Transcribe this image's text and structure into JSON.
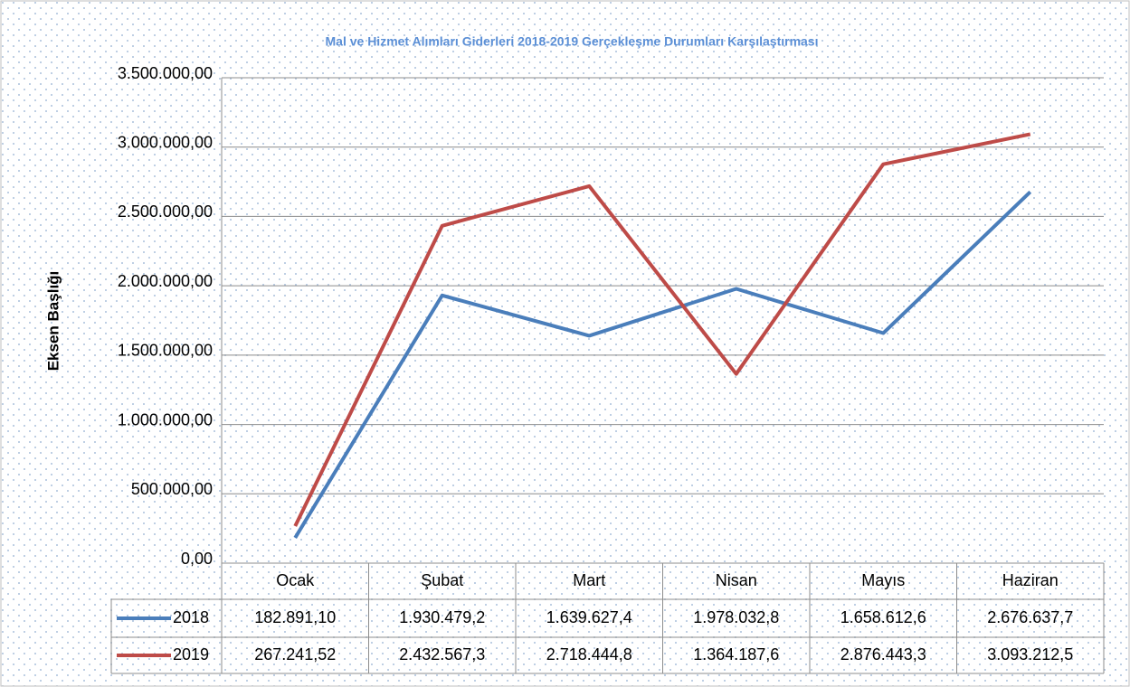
{
  "chart_data": {
    "type": "line",
    "title": "Mal ve Hizmet Alımları Giderleri 2018-2019 Gerçekleşme Durumları Karşılaştırması",
    "y_axis_label": "Eksen Başlığı",
    "categories": [
      "Ocak",
      "Şubat",
      "Mart",
      "Nisan",
      "Mayıs",
      "Haziran"
    ],
    "series": [
      {
        "name": "2018",
        "color": "#4a7ebb",
        "values": [
          182891.1,
          1930479.2,
          1639627.4,
          1978032.8,
          1658612.6,
          2676637.7
        ],
        "value_labels": [
          "182.891,10",
          "1.930.479,2",
          "1.639.627,4",
          "1.978.032,8",
          "1.658.612,6",
          "2.676.637,7"
        ]
      },
      {
        "name": "2019",
        "color": "#be4b48",
        "values": [
          267241.52,
          2432567.3,
          2718444.8,
          1364187.6,
          2876443.3,
          3093212.5
        ],
        "value_labels": [
          "267.241,52",
          "2.432.567,3",
          "2.718.444,8",
          "1.364.187,6",
          "2.876.443,3",
          "3.093.212,5"
        ]
      }
    ],
    "ylim": [
      0,
      3500000
    ],
    "yticks": [
      {
        "value": 0,
        "label": "0,00"
      },
      {
        "value": 500000,
        "label": "500.000,00"
      },
      {
        "value": 1000000,
        "label": "1.000.000,00"
      },
      {
        "value": 1500000,
        "label": "1.500.000,00"
      },
      {
        "value": 2000000,
        "label": "2.000.000,00"
      },
      {
        "value": 2500000,
        "label": "2.500.000,00"
      },
      {
        "value": 3000000,
        "label": "3.000.000,00"
      },
      {
        "value": 3500000,
        "label": "3.500.000,00"
      }
    ],
    "grid": true
  }
}
